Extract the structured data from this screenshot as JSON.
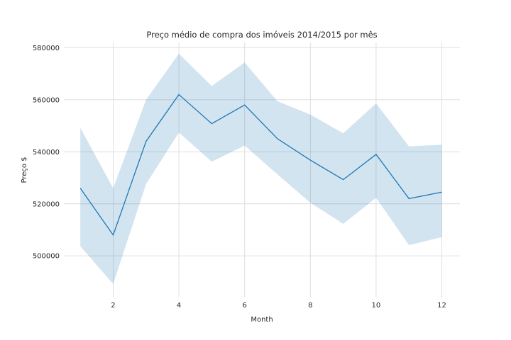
{
  "chart_data": {
    "type": "line",
    "title": "Preço médio de compra dos imóveis 2014/2015 por mês",
    "xlabel": "Month",
    "ylabel": "Preço $",
    "xlim": [
      0.5,
      12.55
    ],
    "ylim": [
      484000,
      582000
    ],
    "xticks": [
      2,
      4,
      6,
      8,
      10,
      12
    ],
    "yticks": [
      500000,
      520000,
      540000,
      560000,
      580000
    ],
    "grid": true,
    "legend": "none",
    "series": [
      {
        "x": [
          1,
          2,
          3,
          4,
          5,
          6,
          7,
          8,
          9,
          10,
          11,
          12
        ],
        "y": [
          526000,
          508000,
          544000,
          562000,
          550800,
          558000,
          545000,
          536800,
          529300,
          539000,
          522000,
          524500
        ],
        "ci_upper": [
          549200,
          526000,
          560000,
          577700,
          565300,
          574300,
          559400,
          554300,
          547100,
          558600,
          542100,
          542700
        ],
        "ci_lower": [
          503700,
          489200,
          527600,
          547400,
          536200,
          542400,
          531300,
          520400,
          512300,
          522300,
          504100,
          507200
        ],
        "color": "#1f77b4",
        "band_color": "#1f77b4"
      }
    ]
  }
}
